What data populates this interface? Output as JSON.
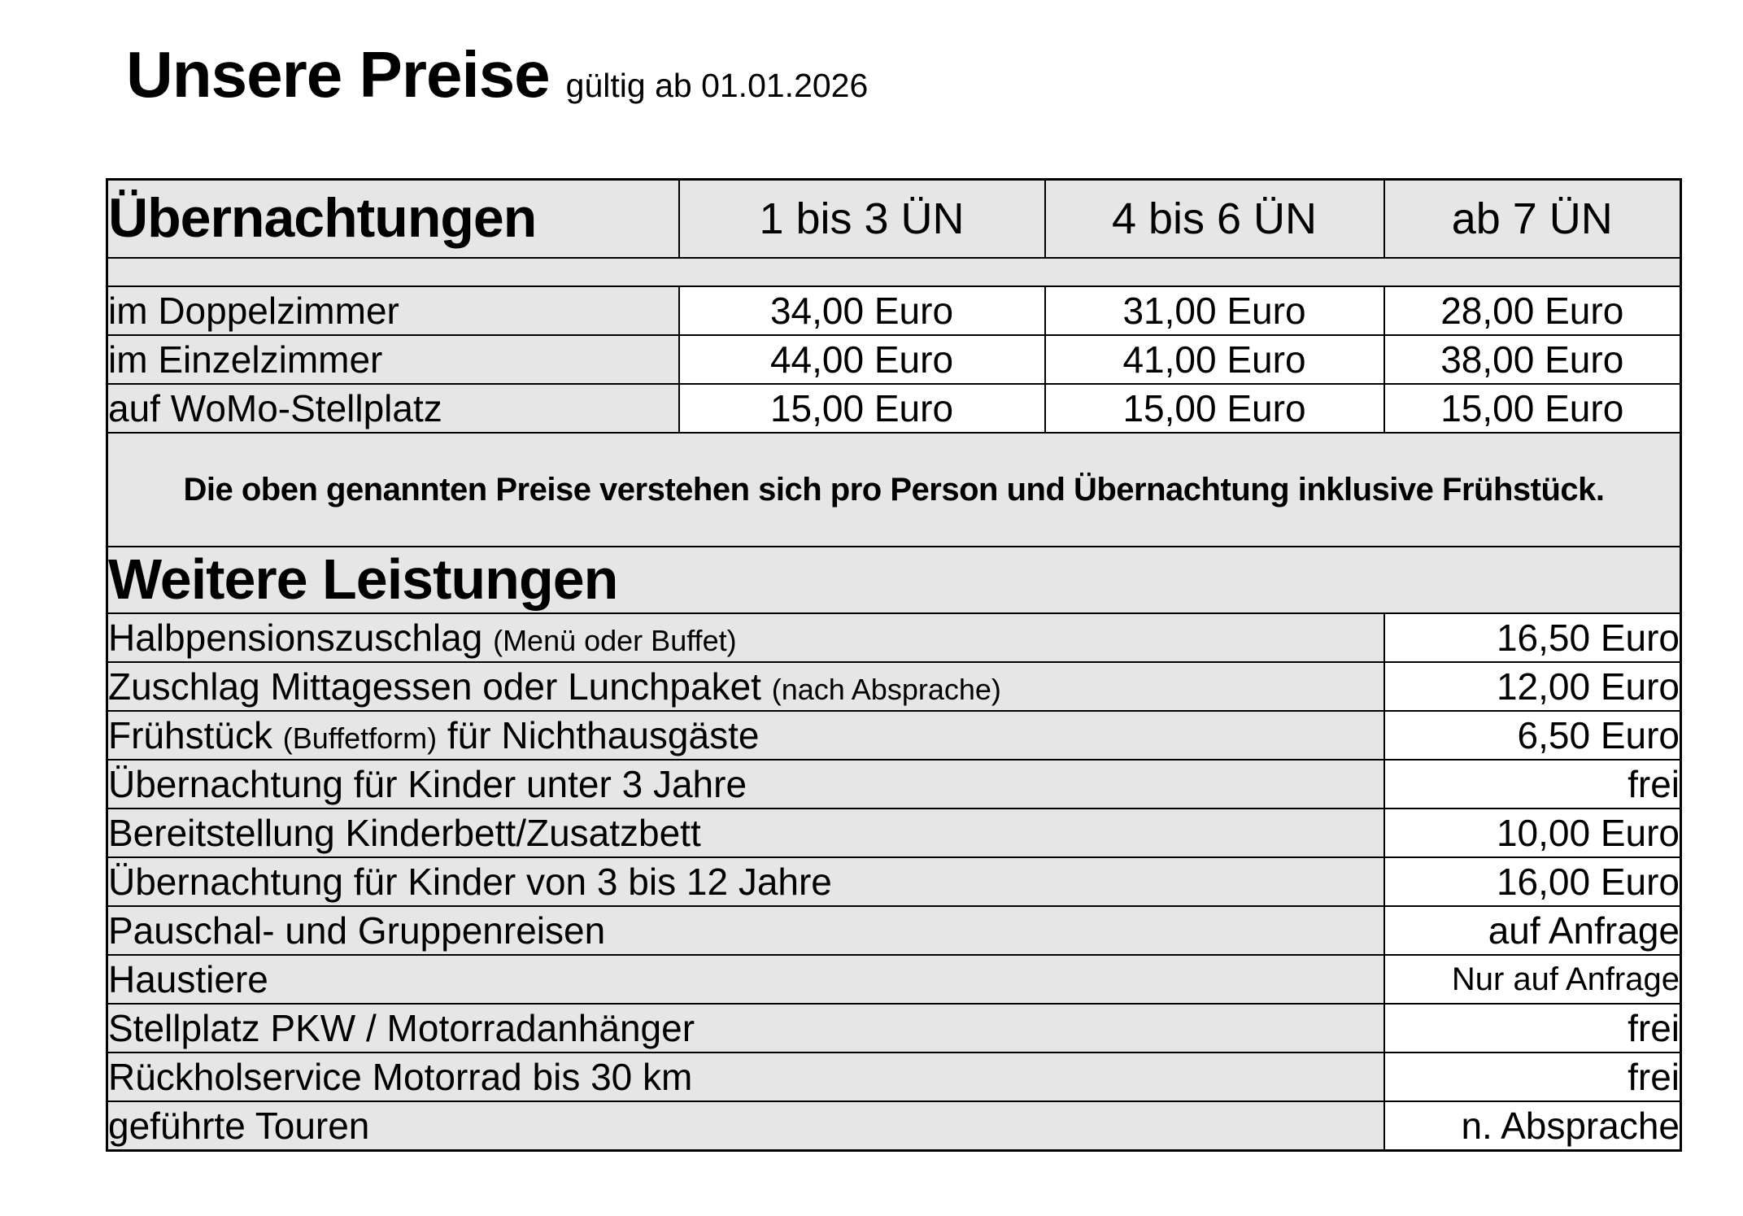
{
  "title": {
    "main": "Unsere Preise",
    "validity": "gültig ab 01.01.2026"
  },
  "colors": {
    "page_bg": "#ffffff",
    "cell_gray": "#e6e6e6",
    "cell_white": "#ffffff",
    "border": "#000000",
    "text": "#000000"
  },
  "accommodation": {
    "title": "Übernachtungen",
    "columns": [
      "1 bis 3 ÜN",
      "4 bis 6 ÜN",
      "ab 7 ÜN"
    ],
    "rows": [
      {
        "label": "im Doppelzimmer",
        "prices": [
          "34,00 Euro",
          "31,00 Euro",
          "28,00 Euro"
        ]
      },
      {
        "label": "im Einzelzimmer",
        "prices": [
          "44,00 Euro",
          "41,00 Euro",
          "38,00 Euro"
        ]
      },
      {
        "label": "auf WoMo-Stellplatz",
        "prices": [
          "15,00 Euro",
          "15,00 Euro",
          "15,00 Euro"
        ]
      }
    ],
    "note": "Die oben genannten Preise verstehen sich pro Person und Übernachtung inklusive Frühstück."
  },
  "services": {
    "title": "Weitere Leistungen",
    "rows": [
      {
        "label_parts": [
          {
            "text": "Halbpensionszuschlag ",
            "small": false
          },
          {
            "text": "(Menü oder Buffet)",
            "small": true
          }
        ],
        "value": "16,50 Euro",
        "value_compact": false
      },
      {
        "label_parts": [
          {
            "text": "Zuschlag Mittagessen oder Lunchpaket ",
            "small": false
          },
          {
            "text": "(nach Absprache)",
            "small": true
          }
        ],
        "value": "12,00 Euro",
        "value_compact": false
      },
      {
        "label_parts": [
          {
            "text": "Frühstück ",
            "small": false
          },
          {
            "text": "(Buffetform)",
            "small": true
          },
          {
            "text": " für Nichthausgäste",
            "small": false
          }
        ],
        "value": "6,50 Euro",
        "value_compact": false
      },
      {
        "label_parts": [
          {
            "text": "Übernachtung für Kinder unter 3 Jahre",
            "small": false
          }
        ],
        "value": "frei",
        "value_compact": false
      },
      {
        "label_parts": [
          {
            "text": "Bereitstellung Kinderbett/Zusatzbett",
            "small": false
          }
        ],
        "value": "10,00 Euro",
        "value_compact": false
      },
      {
        "label_parts": [
          {
            "text": "Übernachtung für Kinder von 3 bis 12 Jahre",
            "small": false
          }
        ],
        "value": "16,00 Euro",
        "value_compact": false
      },
      {
        "label_parts": [
          {
            "text": "Pauschal- und Gruppenreisen",
            "small": false
          }
        ],
        "value": "auf Anfrage",
        "value_compact": false
      },
      {
        "label_parts": [
          {
            "text": "Haustiere",
            "small": false
          }
        ],
        "value": "Nur auf Anfrage",
        "value_compact": true
      },
      {
        "label_parts": [
          {
            "text": "Stellplatz PKW / Motorradanhänger",
            "small": false
          }
        ],
        "value": "frei",
        "value_compact": false
      },
      {
        "label_parts": [
          {
            "text": "Rückholservice Motorrad bis 30 km",
            "small": false
          }
        ],
        "value": "frei",
        "value_compact": false
      },
      {
        "label_parts": [
          {
            "text": "geführte Touren",
            "small": false
          }
        ],
        "value": "n. Absprache",
        "value_compact": false
      }
    ]
  }
}
